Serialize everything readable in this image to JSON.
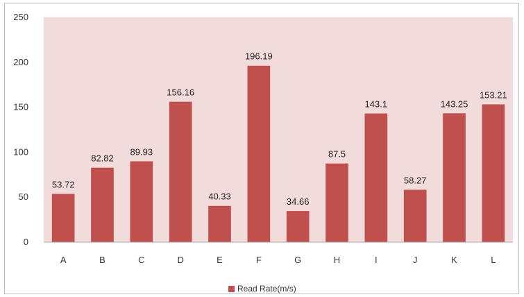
{
  "chart_data": {
    "type": "bar",
    "categories": [
      "A",
      "B",
      "C",
      "D",
      "E",
      "F",
      "G",
      "H",
      "I",
      "J",
      "K",
      "L"
    ],
    "series": [
      {
        "name": "Read Rate(m/s)",
        "values": [
          53.72,
          82.82,
          89.93,
          156.16,
          40.33,
          196.19,
          34.66,
          87.5,
          143.1,
          58.27,
          143.25,
          153.21
        ],
        "labels": [
          "53.72",
          "82.82",
          "89.93",
          "156.16",
          "40.33",
          "196.19",
          "34.66",
          "87.5",
          "143.1",
          "58.27",
          "143.25",
          "153.21"
        ]
      }
    ],
    "ylim": [
      0,
      250
    ],
    "y_ticks": [
      "0",
      "50",
      "100",
      "150",
      "200",
      "250"
    ],
    "grid": false,
    "legend_position": "bottom",
    "colors": {
      "bar": "#c0504d",
      "plot_background": "#f2dcdb"
    }
  }
}
